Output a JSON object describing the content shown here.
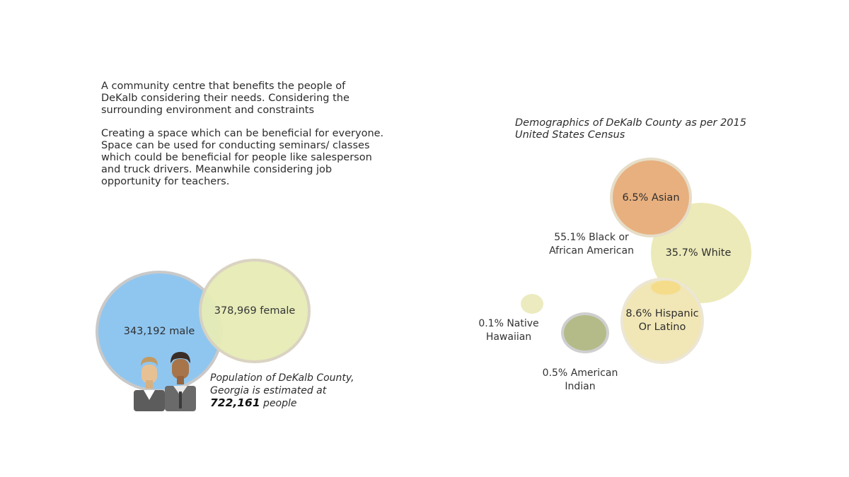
{
  "intro": {
    "paragraph1": "A community centre that benefits the people of DeKalb considering their needs. Considering the surrounding environment and constraints",
    "paragraph2": "Creating a space which can be beneficial for everyone. Space can be used for conducting seminars/ classes which could be beneficial for people like salesperson and truck drivers. Meanwhile considering job opportunity for teachers."
  },
  "population": {
    "male_label": "343,192 male",
    "female_label": "378,969 female",
    "caption_line1": "Population of DeKalb County,",
    "caption_line2": "Georgia is estimated at",
    "total": "722,161",
    "total_suffix": " people",
    "icon": "people-icon"
  },
  "demographics": {
    "title": "Demographics of DeKalb County as per 2015 United States Census",
    "asian": "6.5% Asian",
    "black_line1": "55.1% Black or",
    "black_line2": "African American",
    "white": "35.7% White",
    "hispanic_line1": "8.6% Hispanic",
    "hispanic_line2": "Or Latino",
    "native_line1": "0.1% Native",
    "native_line2": "Hawaiian",
    "indian_line1": "0.5% American",
    "indian_line2": "Indian"
  },
  "colors": {
    "male": "#8fc6f0",
    "female": "#e7ecb7",
    "asian": "#e8b07f",
    "white": "#eceab8",
    "hispanic": "#f1e6b6",
    "american_indian": "#b4bb88",
    "native_hawaiian": "#ecebc0"
  }
}
